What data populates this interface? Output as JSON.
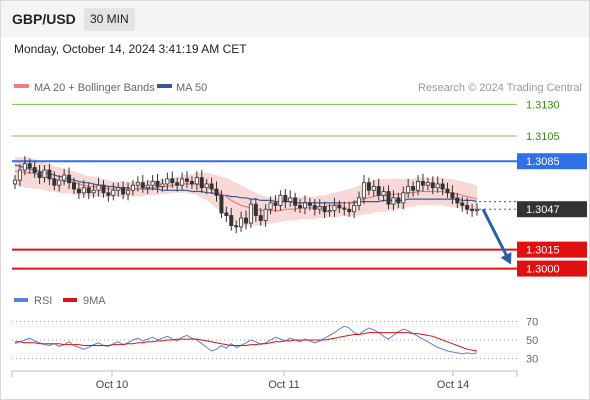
{
  "header": {
    "pair": "GBP/USD",
    "timeframe": "30 MIN"
  },
  "datetime": "Monday, October 14, 2024 3:41:19 AM CET",
  "legend": {
    "ma_bb": "MA 20 + Bollinger Bands",
    "ma50": "MA 50",
    "rsi": "RSI",
    "rsi_ma": "9MA"
  },
  "credit": "Research © 2024 Trading Central",
  "colors": {
    "bb_fill": "#f6c7c7",
    "ma20": "#e08080",
    "ma50": "#3b5998",
    "resistance": "#7cc242",
    "pivot": "#2f6fe8",
    "support": "#e01010",
    "arrow": "#2c5fa6",
    "rsi": "#5b7fe0",
    "rsi_ma": "#e01010",
    "candle": "#333333"
  },
  "chart_data": [
    {
      "type": "line",
      "name": "price",
      "x_ticks": [
        "Oct 10",
        "Oct 11",
        "Oct 14"
      ],
      "ylim": [
        1.2987,
        1.3139
      ],
      "levels": [
        {
          "label": "1.3130",
          "value": 1.313,
          "kind": "resistance"
        },
        {
          "label": "1.3105",
          "value": 1.3105,
          "kind": "resistance"
        },
        {
          "label": "1.3085",
          "value": 1.3085,
          "kind": "pivot"
        },
        {
          "label": "1.3047",
          "value": 1.3047,
          "kind": "last"
        },
        {
          "label": "1.3015",
          "value": 1.3015,
          "kind": "support"
        },
        {
          "label": "1.3000",
          "value": 1.3,
          "kind": "support"
        }
      ],
      "close": [
        1.307,
        1.3078,
        1.3083,
        1.308,
        1.3076,
        1.3072,
        1.3078,
        1.3071,
        1.3066,
        1.307,
        1.3074,
        1.3068,
        1.3063,
        1.306,
        1.3064,
        1.306,
        1.3062,
        1.3066,
        1.306,
        1.3058,
        1.3062,
        1.3064,
        1.3059,
        1.3062,
        1.3066,
        1.3068,
        1.3064,
        1.3066,
        1.3069,
        1.3065,
        1.3067,
        1.3071,
        1.3068,
        1.3066,
        1.3071,
        1.3069,
        1.3067,
        1.3072,
        1.3064,
        1.3067,
        1.3063,
        1.3058,
        1.3044,
        1.3042,
        1.3034,
        1.3033,
        1.304,
        1.3036,
        1.3051,
        1.3042,
        1.3038,
        1.3047,
        1.3052,
        1.305,
        1.3058,
        1.3053,
        1.3056,
        1.305,
        1.3048,
        1.3052,
        1.305,
        1.3047,
        1.3049,
        1.3045,
        1.3046,
        1.305,
        1.3048,
        1.3047,
        1.3045,
        1.305,
        1.3056,
        1.3068,
        1.3062,
        1.3065,
        1.3058,
        1.3061,
        1.3051,
        1.3056,
        1.3052,
        1.306,
        1.3065,
        1.3062,
        1.3069,
        1.3066,
        1.3068,
        1.3064,
        1.3067,
        1.3063,
        1.306,
        1.3056,
        1.3052,
        1.305,
        1.3047,
        1.3046,
        1.3047
      ],
      "ma20": [
        1.3077,
        1.3077,
        1.3076,
        1.3076,
        1.3075,
        1.3074,
        1.3073,
        1.3072,
        1.3071,
        1.307,
        1.3069,
        1.3069,
        1.3068,
        1.3067,
        1.3066,
        1.3065,
        1.3065,
        1.3064,
        1.3064,
        1.3063,
        1.3063,
        1.3063,
        1.3063,
        1.3063,
        1.3063,
        1.3063,
        1.3063,
        1.3064,
        1.3064,
        1.3064,
        1.3065,
        1.3065,
        1.3066,
        1.3066,
        1.3067,
        1.3067,
        1.3067,
        1.3067,
        1.3066,
        1.3065,
        1.3063,
        1.3061,
        1.3059,
        1.3057,
        1.3054,
        1.3052,
        1.305,
        1.3049,
        1.3048,
        1.3047,
        1.3046,
        1.3046,
        1.3046,
        1.3046,
        1.3046,
        1.3047,
        1.3047,
        1.3047,
        1.3048,
        1.3048,
        1.3048,
        1.3048,
        1.3049,
        1.3049,
        1.305,
        1.305,
        1.3051,
        1.3052,
        1.3052,
        1.3053,
        1.3054,
        1.3055,
        1.3056,
        1.3057,
        1.3058,
        1.3058,
        1.3058,
        1.3059,
        1.3059,
        1.3059,
        1.306,
        1.306,
        1.3061,
        1.3061,
        1.3061,
        1.3061,
        1.3061,
        1.3061,
        1.306,
        1.306,
        1.3059,
        1.3058,
        1.3057,
        1.3056,
        1.3055
      ],
      "ma50": [
        1.3082,
        1.3081,
        1.308,
        1.3079,
        1.3078,
        1.3077,
        1.3076,
        1.3075,
        1.3074,
        1.3073,
        1.3072,
        1.3071,
        1.307,
        1.3069,
        1.3068,
        1.3068,
        1.3067,
        1.3066,
        1.3066,
        1.3065,
        1.3065,
        1.3064,
        1.3064,
        1.3064,
        1.3063,
        1.3063,
        1.3063,
        1.3063,
        1.3063,
        1.3063,
        1.3062,
        1.3062,
        1.3062,
        1.3062,
        1.3062,
        1.3062,
        1.3061,
        1.3061,
        1.3061,
        1.306,
        1.306,
        1.3059,
        1.3058,
        1.3058,
        1.3057,
        1.3057,
        1.3056,
        1.3056,
        1.3055,
        1.3055,
        1.3054,
        1.3054,
        1.3054,
        1.3053,
        1.3053,
        1.3053,
        1.3053,
        1.3052,
        1.3052,
        1.3052,
        1.3052,
        1.3052,
        1.3052,
        1.3052,
        1.3052,
        1.3052,
        1.3052,
        1.3052,
        1.3052,
        1.3052,
        1.3053,
        1.3053,
        1.3053,
        1.3053,
        1.3053,
        1.3054,
        1.3054,
        1.3054,
        1.3054,
        1.3054,
        1.3055,
        1.3055,
        1.3055,
        1.3055,
        1.3055,
        1.3055,
        1.3055,
        1.3055,
        1.3055,
        1.3055,
        1.3055,
        1.3054,
        1.3054,
        1.3054,
        1.3053
      ],
      "bb_width": [
        0.0011,
        0.0011,
        0.0012,
        0.0012,
        0.0012,
        0.0011,
        0.0011,
        0.0011,
        0.001,
        0.001,
        0.001,
        0.0009,
        0.0009,
        0.0009,
        0.0008,
        0.0008,
        0.0008,
        0.0007,
        0.0007,
        0.0007,
        0.0006,
        0.0006,
        0.0006,
        0.0006,
        0.0006,
        0.0006,
        0.0006,
        0.0006,
        0.0006,
        0.0006,
        0.0006,
        0.0006,
        0.0006,
        0.0006,
        0.0007,
        0.0007,
        0.0008,
        0.0009,
        0.001,
        0.0011,
        0.0012,
        0.0013,
        0.0014,
        0.0015,
        0.0016,
        0.0016,
        0.0016,
        0.0015,
        0.0014,
        0.0013,
        0.0012,
        0.0011,
        0.001,
        0.001,
        0.0009,
        0.0009,
        0.0009,
        0.0009,
        0.0009,
        0.0009,
        0.0009,
        0.0009,
        0.0009,
        0.0009,
        0.0009,
        0.001,
        0.001,
        0.001,
        0.0011,
        0.0011,
        0.0012,
        0.0012,
        0.0013,
        0.0013,
        0.0013,
        0.0013,
        0.0013,
        0.0012,
        0.0012,
        0.0012,
        0.0011,
        0.0011,
        0.0011,
        0.0011,
        0.0011,
        0.0011,
        0.0011,
        0.0011,
        0.0011,
        0.0011,
        0.0011,
        0.0011,
        0.0011,
        0.0011,
        0.0011
      ],
      "projection": {
        "from": 1.3047,
        "to": 1.3
      }
    },
    {
      "type": "line",
      "name": "rsi",
      "ylim": [
        25,
        75
      ],
      "y_ticks": [
        70,
        50,
        30
      ],
      "rsi": [
        46,
        48,
        50,
        52,
        49,
        47,
        45,
        44,
        46,
        43,
        45,
        48,
        44,
        42,
        40,
        42,
        45,
        47,
        44,
        43,
        46,
        48,
        45,
        47,
        50,
        52,
        49,
        51,
        53,
        50,
        52,
        54,
        51,
        49,
        53,
        55,
        52,
        50,
        46,
        42,
        38,
        40,
        44,
        41,
        46,
        42,
        44,
        47,
        50,
        48,
        45,
        47,
        50,
        53,
        51,
        49,
        52,
        50,
        48,
        51,
        49,
        47,
        49,
        52,
        55,
        58,
        62,
        65,
        63,
        58,
        56,
        60,
        63,
        61,
        58,
        54,
        51,
        55,
        59,
        62,
        60,
        57,
        54,
        51,
        48,
        45,
        42,
        40,
        38,
        37,
        36,
        35,
        36,
        35,
        36
      ],
      "rsi_ma": [
        48,
        48,
        47,
        47,
        47,
        46,
        46,
        46,
        46,
        46,
        45,
        45,
        45,
        45,
        44,
        44,
        44,
        44,
        44,
        44,
        45,
        45,
        45,
        46,
        46,
        47,
        47,
        48,
        48,
        49,
        49,
        50,
        50,
        51,
        51,
        51,
        51,
        51,
        50,
        49,
        48,
        47,
        46,
        45,
        44,
        44,
        44,
        44,
        45,
        45,
        46,
        46,
        47,
        48,
        48,
        49,
        49,
        50,
        50,
        50,
        50,
        50,
        50,
        50,
        51,
        52,
        53,
        54,
        55,
        56,
        56,
        57,
        58,
        58,
        58,
        58,
        58,
        58,
        58,
        58,
        58,
        57,
        57,
        56,
        55,
        54,
        52,
        50,
        48,
        46,
        44,
        42,
        40,
        39,
        38
      ]
    }
  ]
}
